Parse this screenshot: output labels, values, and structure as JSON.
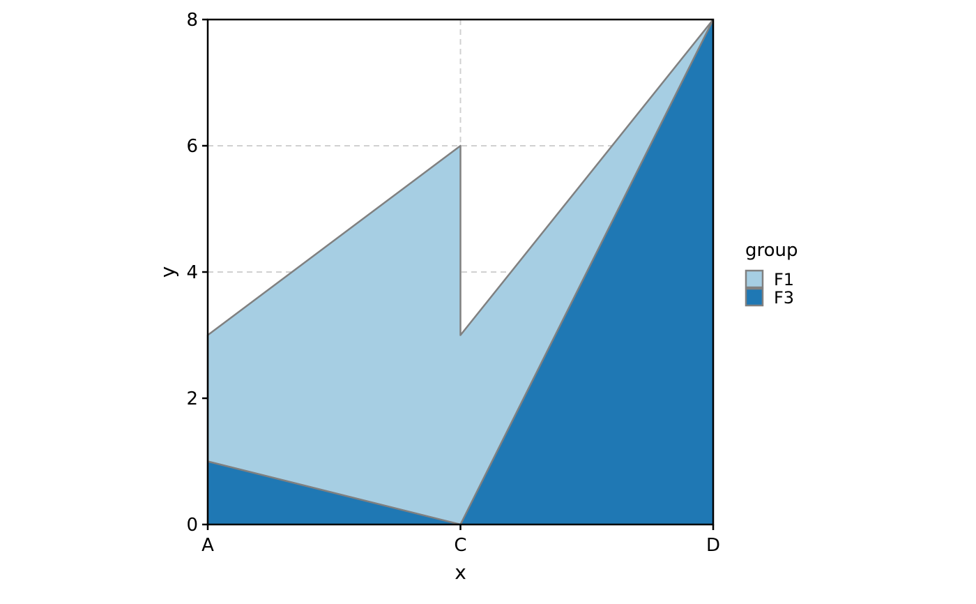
{
  "chart_data": {
    "type": "area",
    "stacked": true,
    "categories": [
      "A",
      "C",
      "D"
    ],
    "xlabel": "x",
    "ylabel": "y",
    "ylim": [
      0,
      8
    ],
    "y_ticks": [
      0,
      2,
      4,
      6,
      8
    ],
    "grid": "dashed",
    "legend_position": "right",
    "legend_title": "group",
    "series": [
      {
        "name": "F1",
        "color": "#a6cee3",
        "points": [
          {
            "x": "A",
            "y": 2
          },
          {
            "x": "C",
            "y": 6
          },
          {
            "x": "C",
            "y": 3
          },
          {
            "x": "D",
            "y": 0
          }
        ]
      },
      {
        "name": "F3",
        "color": "#1f78b4",
        "points": [
          {
            "x": "A",
            "y": 1
          },
          {
            "x": "C",
            "y": 0
          },
          {
            "x": "D",
            "y": 8
          }
        ]
      }
    ],
    "outline_color": "#808080"
  }
}
